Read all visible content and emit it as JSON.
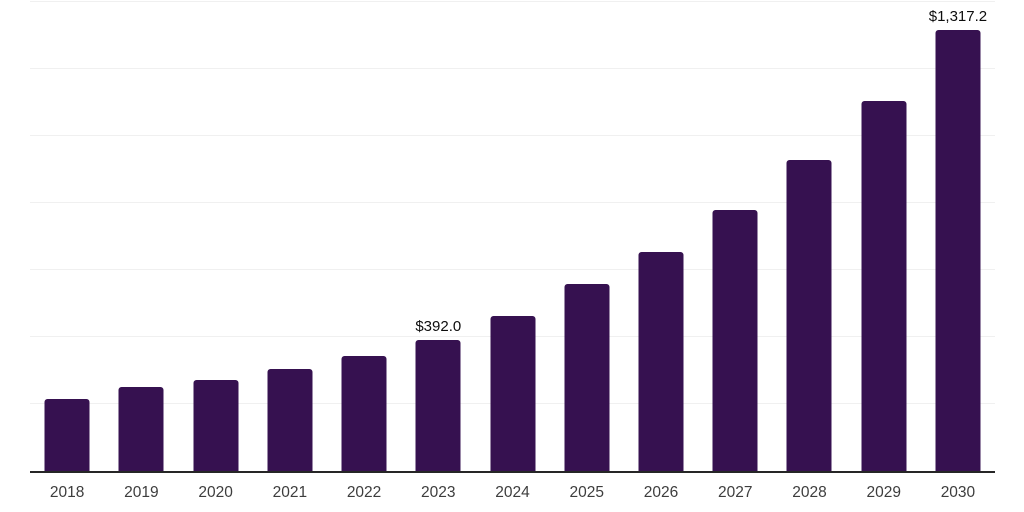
{
  "chart_data": {
    "type": "bar",
    "title": "",
    "xlabel": "",
    "ylabel": "",
    "categories": [
      "2018",
      "2019",
      "2020",
      "2021",
      "2022",
      "2023",
      "2024",
      "2025",
      "2026",
      "2027",
      "2028",
      "2029",
      "2030"
    ],
    "values": [
      216,
      250,
      271,
      305,
      344,
      392.0,
      464,
      557,
      653,
      780,
      929,
      1105,
      1317.2
    ],
    "data_labels": {
      "2023": "$392.0",
      "2030": "$1,317.2"
    },
    "ylim": [
      0,
      1400
    ],
    "grid_step": 200,
    "grid": true,
    "legend": "none",
    "bar_color": "#361150",
    "axis_color": "#262626",
    "gridline_color": "#f0f0f0",
    "tick_label_color": "#3d3d3d",
    "value_label_color": "#0d0d0d"
  }
}
